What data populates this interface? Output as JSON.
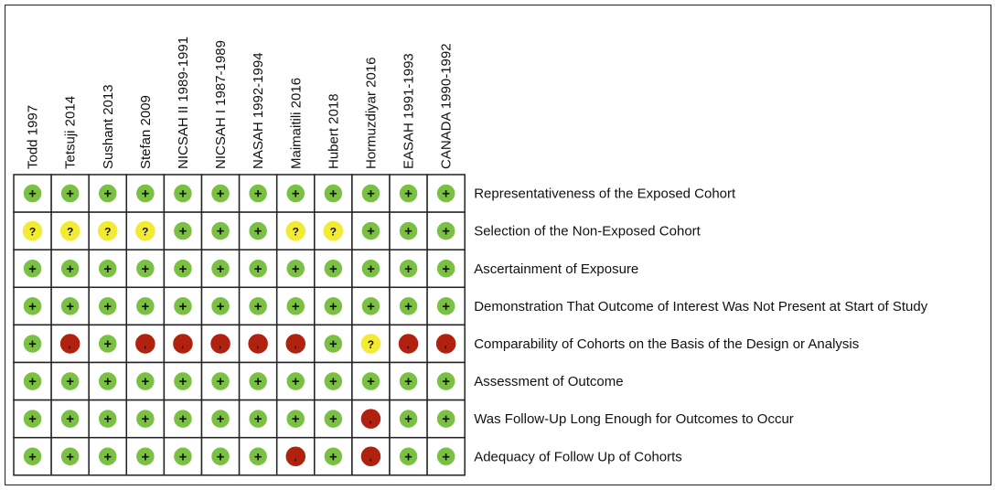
{
  "chart_data": {
    "type": "table",
    "studies": [
      "Todd  1997",
      "Tetsuji  2014",
      "Sushant  2013",
      "Stefan  2009",
      "NICSAH II  1989-1991",
      "NICSAH I  1987-1989",
      "NASAH  1992-1994",
      "Maimaitili  2016",
      "Hubert  2018",
      "Hormuzdiyar  2016",
      "EASAH  1991-1993",
      "CANADA  1990-1992"
    ],
    "domains": [
      "Representativeness of the Exposed Cohort",
      "Selection of the Non-Exposed Cohort",
      "Ascertainment of Exposure",
      "Demonstration That Outcome of Interest Was Not Present at Start of Study",
      "Comparability of Cohorts on the Basis of the Design or Analysis",
      "Assessment of Outcome",
      "Was Follow-Up Long Enough for Outcomes to Occur",
      "Adequacy of Follow Up of Cohorts"
    ],
    "judgements": [
      [
        "+",
        "+",
        "+",
        "+",
        "+",
        "+",
        "+",
        "+",
        "+",
        "+",
        "+",
        "+"
      ],
      [
        "?",
        "?",
        "?",
        "?",
        "+",
        "+",
        "+",
        "?",
        "?",
        "+",
        "+",
        "+"
      ],
      [
        "+",
        "+",
        "+",
        "+",
        "+",
        "+",
        "+",
        "+",
        "+",
        "+",
        "+",
        "+"
      ],
      [
        "+",
        "+",
        "+",
        "+",
        "+",
        "+",
        "+",
        "+",
        "+",
        "+",
        "+",
        "+"
      ],
      [
        "+",
        "-",
        "+",
        "-",
        "-",
        "-",
        "-",
        "-",
        "+",
        "?",
        "-",
        "-"
      ],
      [
        "+",
        "+",
        "+",
        "+",
        "+",
        "+",
        "+",
        "+",
        "+",
        "+",
        "+",
        "+"
      ],
      [
        "+",
        "+",
        "+",
        "+",
        "+",
        "+",
        "+",
        "+",
        "+",
        "-",
        "+",
        "+"
      ],
      [
        "+",
        "+",
        "+",
        "+",
        "+",
        "+",
        "+",
        "-",
        "+",
        "-",
        "+",
        "+"
      ]
    ],
    "symbols": {
      "+": "+",
      "?": "?",
      "-": "-"
    },
    "colors": {
      "+": "#7ac143",
      "?": "#f2ea33",
      "-": "#b1210f",
      "border": "#222222",
      "stroke": "#ffffff"
    }
  }
}
